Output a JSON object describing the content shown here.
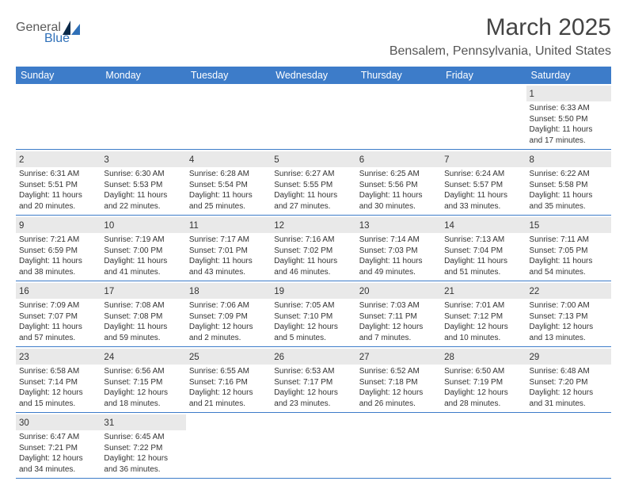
{
  "brand": {
    "general": "General",
    "blue": "Blue"
  },
  "title": "March 2025",
  "subtitle": "Bensalem, Pennsylvania, United States",
  "colors": {
    "header_band": "#3d7cc9",
    "day_strip": "#e9e9e9",
    "rule": "#3d7cc9",
    "text": "#333333",
    "title": "#444444"
  },
  "typography": {
    "title_pt": 30,
    "subtitle_pt": 16,
    "header_pt": 12.5,
    "daynum_pt": 11.5,
    "body_pt": 10
  },
  "layout": {
    "cols": 7,
    "rows": 6
  },
  "day_labels": [
    "Sunday",
    "Monday",
    "Tuesday",
    "Wednesday",
    "Thursday",
    "Friday",
    "Saturday"
  ],
  "weeks": [
    [
      {
        "blank": true
      },
      {
        "blank": true
      },
      {
        "blank": true
      },
      {
        "blank": true
      },
      {
        "blank": true
      },
      {
        "blank": true
      },
      {
        "n": "1",
        "sunrise": "Sunrise: 6:33 AM",
        "sunset": "Sunset: 5:50 PM",
        "d1": "Daylight: 11 hours",
        "d2": "and 17 minutes."
      }
    ],
    [
      {
        "n": "2",
        "sunrise": "Sunrise: 6:31 AM",
        "sunset": "Sunset: 5:51 PM",
        "d1": "Daylight: 11 hours",
        "d2": "and 20 minutes."
      },
      {
        "n": "3",
        "sunrise": "Sunrise: 6:30 AM",
        "sunset": "Sunset: 5:53 PM",
        "d1": "Daylight: 11 hours",
        "d2": "and 22 minutes."
      },
      {
        "n": "4",
        "sunrise": "Sunrise: 6:28 AM",
        "sunset": "Sunset: 5:54 PM",
        "d1": "Daylight: 11 hours",
        "d2": "and 25 minutes."
      },
      {
        "n": "5",
        "sunrise": "Sunrise: 6:27 AM",
        "sunset": "Sunset: 5:55 PM",
        "d1": "Daylight: 11 hours",
        "d2": "and 27 minutes."
      },
      {
        "n": "6",
        "sunrise": "Sunrise: 6:25 AM",
        "sunset": "Sunset: 5:56 PM",
        "d1": "Daylight: 11 hours",
        "d2": "and 30 minutes."
      },
      {
        "n": "7",
        "sunrise": "Sunrise: 6:24 AM",
        "sunset": "Sunset: 5:57 PM",
        "d1": "Daylight: 11 hours",
        "d2": "and 33 minutes."
      },
      {
        "n": "8",
        "sunrise": "Sunrise: 6:22 AM",
        "sunset": "Sunset: 5:58 PM",
        "d1": "Daylight: 11 hours",
        "d2": "and 35 minutes."
      }
    ],
    [
      {
        "n": "9",
        "sunrise": "Sunrise: 7:21 AM",
        "sunset": "Sunset: 6:59 PM",
        "d1": "Daylight: 11 hours",
        "d2": "and 38 minutes."
      },
      {
        "n": "10",
        "sunrise": "Sunrise: 7:19 AM",
        "sunset": "Sunset: 7:00 PM",
        "d1": "Daylight: 11 hours",
        "d2": "and 41 minutes."
      },
      {
        "n": "11",
        "sunrise": "Sunrise: 7:17 AM",
        "sunset": "Sunset: 7:01 PM",
        "d1": "Daylight: 11 hours",
        "d2": "and 43 minutes."
      },
      {
        "n": "12",
        "sunrise": "Sunrise: 7:16 AM",
        "sunset": "Sunset: 7:02 PM",
        "d1": "Daylight: 11 hours",
        "d2": "and 46 minutes."
      },
      {
        "n": "13",
        "sunrise": "Sunrise: 7:14 AM",
        "sunset": "Sunset: 7:03 PM",
        "d1": "Daylight: 11 hours",
        "d2": "and 49 minutes."
      },
      {
        "n": "14",
        "sunrise": "Sunrise: 7:13 AM",
        "sunset": "Sunset: 7:04 PM",
        "d1": "Daylight: 11 hours",
        "d2": "and 51 minutes."
      },
      {
        "n": "15",
        "sunrise": "Sunrise: 7:11 AM",
        "sunset": "Sunset: 7:05 PM",
        "d1": "Daylight: 11 hours",
        "d2": "and 54 minutes."
      }
    ],
    [
      {
        "n": "16",
        "sunrise": "Sunrise: 7:09 AM",
        "sunset": "Sunset: 7:07 PM",
        "d1": "Daylight: 11 hours",
        "d2": "and 57 minutes."
      },
      {
        "n": "17",
        "sunrise": "Sunrise: 7:08 AM",
        "sunset": "Sunset: 7:08 PM",
        "d1": "Daylight: 11 hours",
        "d2": "and 59 minutes."
      },
      {
        "n": "18",
        "sunrise": "Sunrise: 7:06 AM",
        "sunset": "Sunset: 7:09 PM",
        "d1": "Daylight: 12 hours",
        "d2": "and 2 minutes."
      },
      {
        "n": "19",
        "sunrise": "Sunrise: 7:05 AM",
        "sunset": "Sunset: 7:10 PM",
        "d1": "Daylight: 12 hours",
        "d2": "and 5 minutes."
      },
      {
        "n": "20",
        "sunrise": "Sunrise: 7:03 AM",
        "sunset": "Sunset: 7:11 PM",
        "d1": "Daylight: 12 hours",
        "d2": "and 7 minutes."
      },
      {
        "n": "21",
        "sunrise": "Sunrise: 7:01 AM",
        "sunset": "Sunset: 7:12 PM",
        "d1": "Daylight: 12 hours",
        "d2": "and 10 minutes."
      },
      {
        "n": "22",
        "sunrise": "Sunrise: 7:00 AM",
        "sunset": "Sunset: 7:13 PM",
        "d1": "Daylight: 12 hours",
        "d2": "and 13 minutes."
      }
    ],
    [
      {
        "n": "23",
        "sunrise": "Sunrise: 6:58 AM",
        "sunset": "Sunset: 7:14 PM",
        "d1": "Daylight: 12 hours",
        "d2": "and 15 minutes."
      },
      {
        "n": "24",
        "sunrise": "Sunrise: 6:56 AM",
        "sunset": "Sunset: 7:15 PM",
        "d1": "Daylight: 12 hours",
        "d2": "and 18 minutes."
      },
      {
        "n": "25",
        "sunrise": "Sunrise: 6:55 AM",
        "sunset": "Sunset: 7:16 PM",
        "d1": "Daylight: 12 hours",
        "d2": "and 21 minutes."
      },
      {
        "n": "26",
        "sunrise": "Sunrise: 6:53 AM",
        "sunset": "Sunset: 7:17 PM",
        "d1": "Daylight: 12 hours",
        "d2": "and 23 minutes."
      },
      {
        "n": "27",
        "sunrise": "Sunrise: 6:52 AM",
        "sunset": "Sunset: 7:18 PM",
        "d1": "Daylight: 12 hours",
        "d2": "and 26 minutes."
      },
      {
        "n": "28",
        "sunrise": "Sunrise: 6:50 AM",
        "sunset": "Sunset: 7:19 PM",
        "d1": "Daylight: 12 hours",
        "d2": "and 28 minutes."
      },
      {
        "n": "29",
        "sunrise": "Sunrise: 6:48 AM",
        "sunset": "Sunset: 7:20 PM",
        "d1": "Daylight: 12 hours",
        "d2": "and 31 minutes."
      }
    ],
    [
      {
        "n": "30",
        "sunrise": "Sunrise: 6:47 AM",
        "sunset": "Sunset: 7:21 PM",
        "d1": "Daylight: 12 hours",
        "d2": "and 34 minutes."
      },
      {
        "n": "31",
        "sunrise": "Sunrise: 6:45 AM",
        "sunset": "Sunset: 7:22 PM",
        "d1": "Daylight: 12 hours",
        "d2": "and 36 minutes."
      },
      {
        "blank": true
      },
      {
        "blank": true
      },
      {
        "blank": true
      },
      {
        "blank": true
      },
      {
        "blank": true
      }
    ]
  ]
}
